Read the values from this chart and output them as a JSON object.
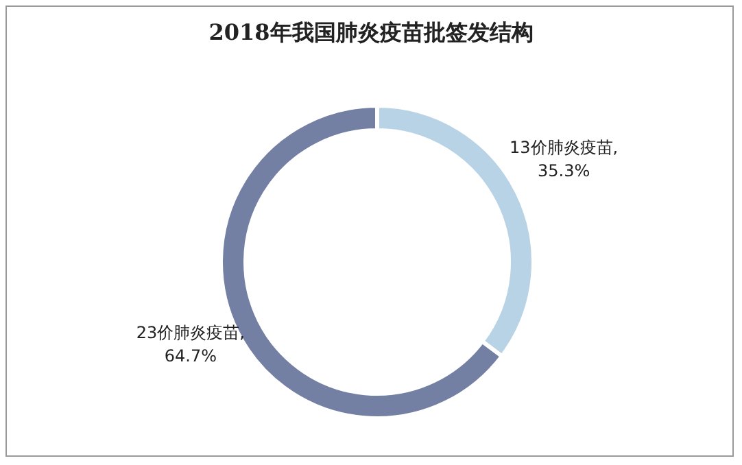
{
  "chart_data": {
    "type": "donut",
    "title": "2018年我国肺炎疫苗批签发结构",
    "categories": [
      "13价肺炎疫苗",
      "23价肺炎疫苗"
    ],
    "values": [
      35.3,
      64.7
    ],
    "colors": [
      "#b8d3e6",
      "#737fa3"
    ],
    "value_labels": [
      ",\n35.3%",
      ",\n64.7%"
    ],
    "legend": false
  }
}
